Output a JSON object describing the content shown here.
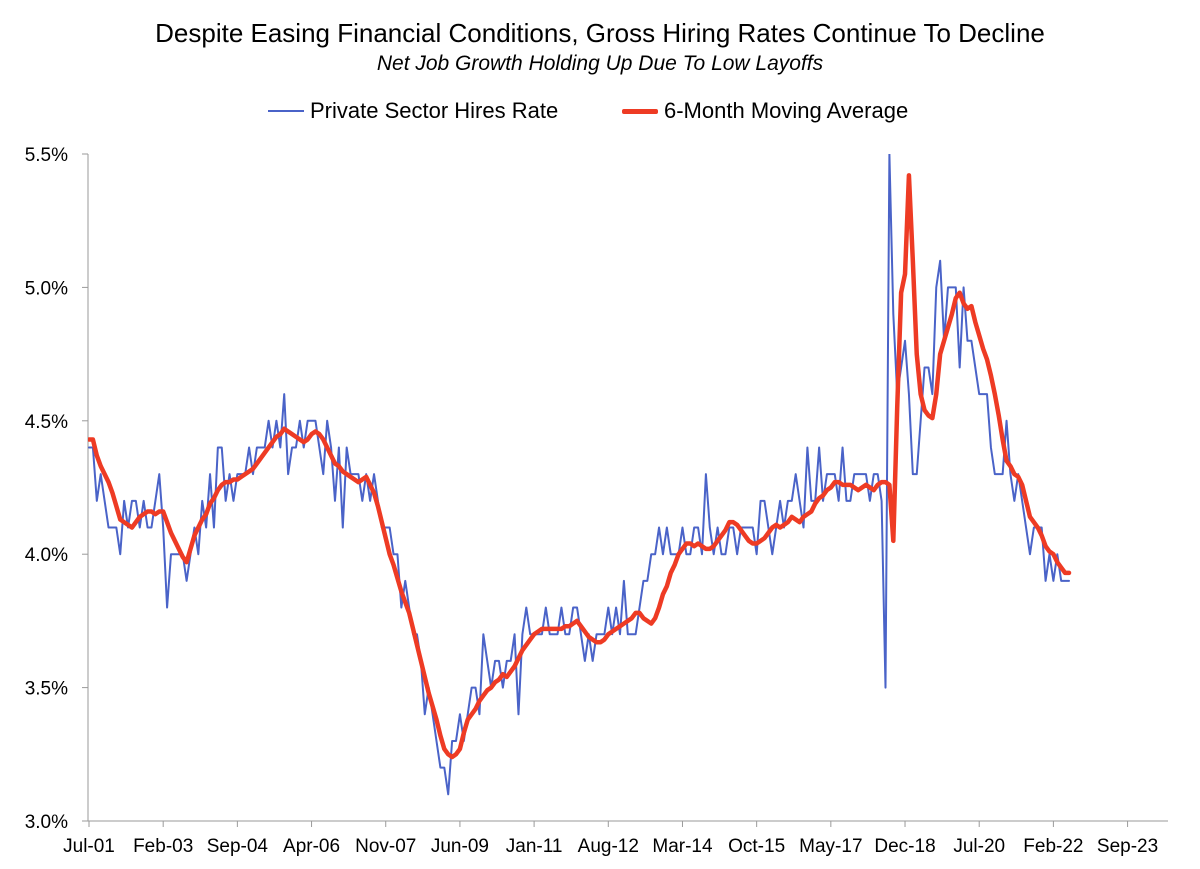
{
  "chart_data": {
    "type": "line",
    "title": "Despite Easing Financial Conditions, Gross Hiring Rates Continue To Decline",
    "subtitle": "Net Job Growth Holding Up Due To Low Layoffs",
    "legend_position": "top-center",
    "grid": false,
    "x_start": "2001-07",
    "x_end": "2024-03",
    "x_tick_labels": [
      "Jul-01",
      "Feb-03",
      "Sep-04",
      "Apr-06",
      "Nov-07",
      "Jun-09",
      "Jan-11",
      "Aug-12",
      "Mar-14",
      "Oct-15",
      "May-17",
      "Dec-18",
      "Jul-20",
      "Feb-22",
      "Sep-23"
    ],
    "y_ticks": [
      "3.0%",
      "3.5%",
      "4.0%",
      "4.5%",
      "5.0%",
      "5.5%"
    ],
    "ylim": [
      3.0,
      5.5
    ],
    "series": [
      {
        "name": "Private Sector Hires Rate",
        "color": "#4a63c8",
        "values": [
          4.4,
          4.4,
          4.2,
          4.3,
          4.2,
          4.1,
          4.1,
          4.1,
          4.0,
          4.2,
          4.1,
          4.2,
          4.2,
          4.1,
          4.2,
          4.1,
          4.1,
          4.2,
          4.3,
          4.1,
          3.8,
          4.0,
          4.0,
          4.0,
          4.0,
          3.9,
          4.0,
          4.1,
          4.0,
          4.2,
          4.1,
          4.3,
          4.1,
          4.4,
          4.4,
          4.2,
          4.3,
          4.2,
          4.3,
          4.3,
          4.3,
          4.4,
          4.3,
          4.4,
          4.4,
          4.4,
          4.5,
          4.4,
          4.5,
          4.4,
          4.6,
          4.3,
          4.4,
          4.4,
          4.5,
          4.4,
          4.5,
          4.5,
          4.5,
          4.4,
          4.3,
          4.5,
          4.4,
          4.2,
          4.4,
          4.1,
          4.4,
          4.3,
          4.3,
          4.3,
          4.2,
          4.3,
          4.2,
          4.3,
          4.2,
          4.1,
          4.1,
          4.1,
          4.0,
          4.0,
          3.8,
          3.9,
          3.8,
          3.7,
          3.7,
          3.6,
          3.4,
          3.5,
          3.4,
          3.3,
          3.2,
          3.2,
          3.1,
          3.3,
          3.3,
          3.4,
          3.3,
          3.4,
          3.5,
          3.5,
          3.4,
          3.7,
          3.6,
          3.5,
          3.6,
          3.6,
          3.5,
          3.6,
          3.6,
          3.7,
          3.4,
          3.7,
          3.8,
          3.7,
          3.7,
          3.7,
          3.7,
          3.8,
          3.7,
          3.7,
          3.7,
          3.8,
          3.7,
          3.7,
          3.8,
          3.8,
          3.7,
          3.6,
          3.7,
          3.6,
          3.7,
          3.7,
          3.7,
          3.8,
          3.7,
          3.8,
          3.7,
          3.9,
          3.7,
          3.7,
          3.7,
          3.8,
          3.9,
          3.9,
          4.0,
          4.0,
          4.1,
          4.0,
          4.1,
          4.0,
          4.0,
          4.0,
          4.1,
          4.0,
          4.0,
          4.1,
          4.1,
          4.0,
          4.3,
          4.1,
          4.0,
          4.1,
          4.0,
          4.0,
          4.1,
          4.1,
          4.0,
          4.1,
          4.1,
          4.1,
          4.1,
          4.0,
          4.2,
          4.2,
          4.1,
          4.0,
          4.1,
          4.2,
          4.1,
          4.2,
          4.2,
          4.3,
          4.2,
          4.1,
          4.4,
          4.2,
          4.2,
          4.4,
          4.2,
          4.3,
          4.3,
          4.3,
          4.2,
          4.4,
          4.2,
          4.2,
          4.3,
          4.3,
          4.3,
          4.3,
          4.2,
          4.3,
          4.3,
          4.2,
          3.5,
          5.5,
          4.9,
          4.6,
          4.7,
          4.8,
          4.6,
          4.3,
          4.3,
          4.5,
          4.7,
          4.7,
          4.6,
          5.0,
          5.1,
          4.8,
          5.0,
          5.0,
          5.0,
          4.7,
          5.0,
          4.8,
          4.8,
          4.7,
          4.6,
          4.6,
          4.6,
          4.4,
          4.3,
          4.3,
          4.3,
          4.5,
          4.3,
          4.2,
          4.3,
          4.2,
          4.1,
          4.0,
          4.1,
          4.1,
          4.1,
          3.9,
          4.0,
          3.9,
          4.0,
          3.9,
          3.9,
          3.9
        ]
      },
      {
        "name": "6-Month Moving Average",
        "color": "#ee3b24",
        "values": [
          4.43,
          4.43,
          4.37,
          4.33,
          4.3,
          4.27,
          4.23,
          4.18,
          4.13,
          4.12,
          4.11,
          4.1,
          4.12,
          4.14,
          4.15,
          4.16,
          4.16,
          4.15,
          4.16,
          4.16,
          4.12,
          4.08,
          4.05,
          4.02,
          3.99,
          3.97,
          4.02,
          4.07,
          4.1,
          4.13,
          4.15,
          4.19,
          4.21,
          4.24,
          4.26,
          4.27,
          4.27,
          4.28,
          4.28,
          4.29,
          4.3,
          4.31,
          4.32,
          4.34,
          4.36,
          4.38,
          4.4,
          4.42,
          4.44,
          4.45,
          4.47,
          4.46,
          4.45,
          4.44,
          4.43,
          4.42,
          4.43,
          4.45,
          4.46,
          4.45,
          4.43,
          4.4,
          4.37,
          4.34,
          4.33,
          4.31,
          4.3,
          4.29,
          4.28,
          4.27,
          4.28,
          4.29,
          4.26,
          4.23,
          4.18,
          4.12,
          4.06,
          4.0,
          3.96,
          3.91,
          3.86,
          3.82,
          3.78,
          3.72,
          3.66,
          3.6,
          3.54,
          3.48,
          3.43,
          3.38,
          3.32,
          3.27,
          3.25,
          3.24,
          3.25,
          3.27,
          3.33,
          3.38,
          3.4,
          3.42,
          3.45,
          3.47,
          3.49,
          3.5,
          3.52,
          3.53,
          3.55,
          3.54,
          3.56,
          3.58,
          3.61,
          3.64,
          3.66,
          3.68,
          3.7,
          3.71,
          3.72,
          3.72,
          3.72,
          3.72,
          3.72,
          3.72,
          3.73,
          3.73,
          3.74,
          3.75,
          3.73,
          3.71,
          3.69,
          3.68,
          3.67,
          3.67,
          3.68,
          3.7,
          3.71,
          3.72,
          3.73,
          3.74,
          3.75,
          3.76,
          3.78,
          3.78,
          3.76,
          3.75,
          3.74,
          3.76,
          3.8,
          3.85,
          3.88,
          3.93,
          3.96,
          4.0,
          4.02,
          4.04,
          4.04,
          4.03,
          4.04,
          4.03,
          4.02,
          4.02,
          4.03,
          4.05,
          4.07,
          4.09,
          4.12,
          4.12,
          4.11,
          4.09,
          4.07,
          4.05,
          4.04,
          4.04,
          4.05,
          4.06,
          4.08,
          4.1,
          4.11,
          4.1,
          4.11,
          4.12,
          4.14,
          4.13,
          4.12,
          4.14,
          4.15,
          4.16,
          4.19,
          4.21,
          4.22,
          4.24,
          4.25,
          4.27,
          4.27,
          4.26,
          4.26,
          4.26,
          4.25,
          4.24,
          4.25,
          4.26,
          4.25,
          4.24,
          4.26,
          4.27,
          4.27,
          4.26,
          4.05,
          4.55,
          4.98,
          5.05,
          5.42,
          5.1,
          4.75,
          4.6,
          4.54,
          4.52,
          4.51,
          4.6,
          4.75,
          4.8,
          4.85,
          4.9,
          4.96,
          4.98,
          4.94,
          4.92,
          4.93,
          4.87,
          4.82,
          4.77,
          4.73,
          4.67,
          4.6,
          4.52,
          4.43,
          4.35,
          4.33,
          4.3,
          4.29,
          4.26,
          4.2,
          4.14,
          4.12,
          4.1,
          4.07,
          4.03,
          4.01,
          4.0,
          3.97,
          3.95,
          3.93,
          3.93
        ]
      }
    ]
  }
}
